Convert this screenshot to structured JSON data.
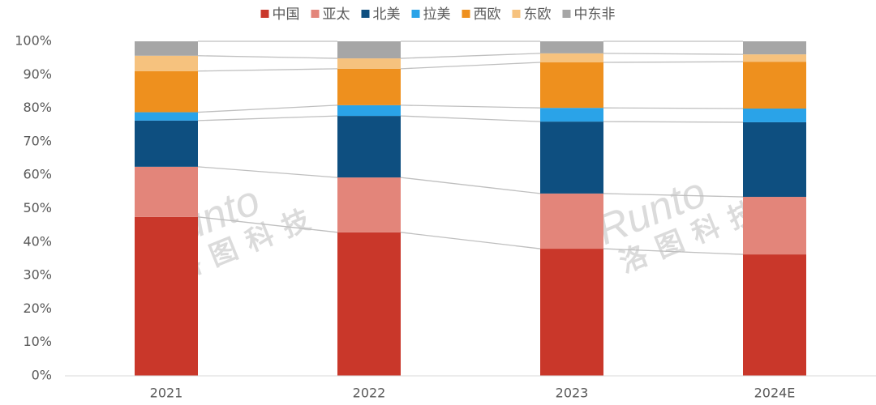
{
  "chart_data": {
    "type": "stacked_bar",
    "categories": [
      "2021",
      "2022",
      "2023",
      "2024E"
    ],
    "series": [
      {
        "name": "中国",
        "color": "#c9372a",
        "values": [
          47.5,
          42.9,
          38.0,
          36.3
        ]
      },
      {
        "name": "亚太",
        "color": "#e3857a",
        "values": [
          15.0,
          16.4,
          16.5,
          17.2
        ]
      },
      {
        "name": "北美",
        "color": "#0e4f80",
        "values": [
          13.8,
          18.4,
          21.5,
          22.3
        ]
      },
      {
        "name": "拉美",
        "color": "#2aa3e8",
        "values": [
          2.5,
          3.2,
          4.1,
          4.1
        ]
      },
      {
        "name": "西欧",
        "color": "#ee901e",
        "values": [
          12.3,
          10.9,
          13.6,
          14.0
        ]
      },
      {
        "name": "东欧",
        "color": "#f6c27e",
        "values": [
          4.6,
          3.1,
          2.7,
          2.2
        ]
      },
      {
        "name": "中东非",
        "color": "#a6a6a6",
        "values": [
          4.3,
          5.1,
          3.6,
          3.9
        ]
      }
    ],
    "ylim": [
      0,
      100
    ],
    "yticks": [
      {
        "value": 0,
        "label": "0%"
      },
      {
        "value": 10,
        "label": "10%"
      },
      {
        "value": 20,
        "label": "20%"
      },
      {
        "value": 30,
        "label": "30%"
      },
      {
        "value": 40,
        "label": "40%"
      },
      {
        "value": 50,
        "label": "50%"
      },
      {
        "value": 60,
        "label": "60%"
      },
      {
        "value": 70,
        "label": "70%"
      },
      {
        "value": 80,
        "label": "80%"
      },
      {
        "value": 90,
        "label": "90%"
      },
      {
        "value": 100,
        "label": "100%"
      }
    ],
    "grid": false,
    "legend": "top",
    "watermark": [
      "Runto",
      "洛图科技"
    ]
  }
}
